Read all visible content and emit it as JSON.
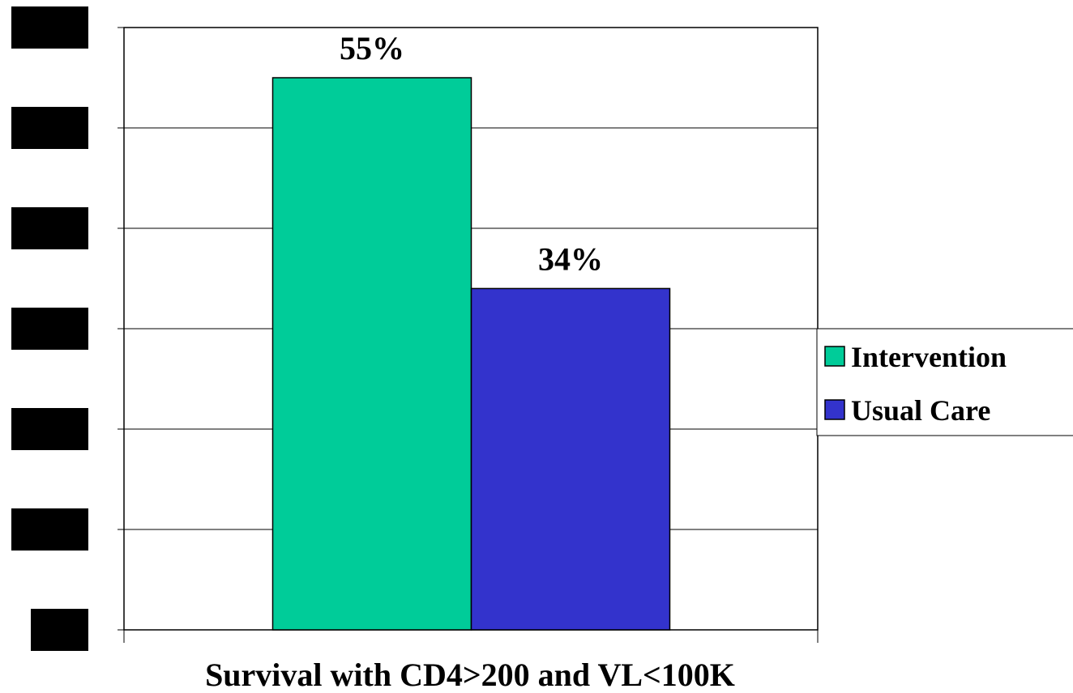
{
  "chart_data": {
    "type": "bar",
    "categories": [
      "Survival with CD4>200 and VL<100K"
    ],
    "series": [
      {
        "name": "Intervention",
        "values": [
          55
        ],
        "label": "55%",
        "color": "#00cc99"
      },
      {
        "name": "Usual Care",
        "values": [
          34
        ],
        "label": "34%",
        "color": "#3333cc"
      }
    ],
    "xlabel": "Survival with CD4>200 and VL<100K",
    "ylim": [
      0,
      60
    ],
    "yticks": [
      0,
      10,
      20,
      30,
      40,
      50,
      60
    ],
    "ytick_labels_redacted": true,
    "grid": true,
    "legend": "right"
  }
}
